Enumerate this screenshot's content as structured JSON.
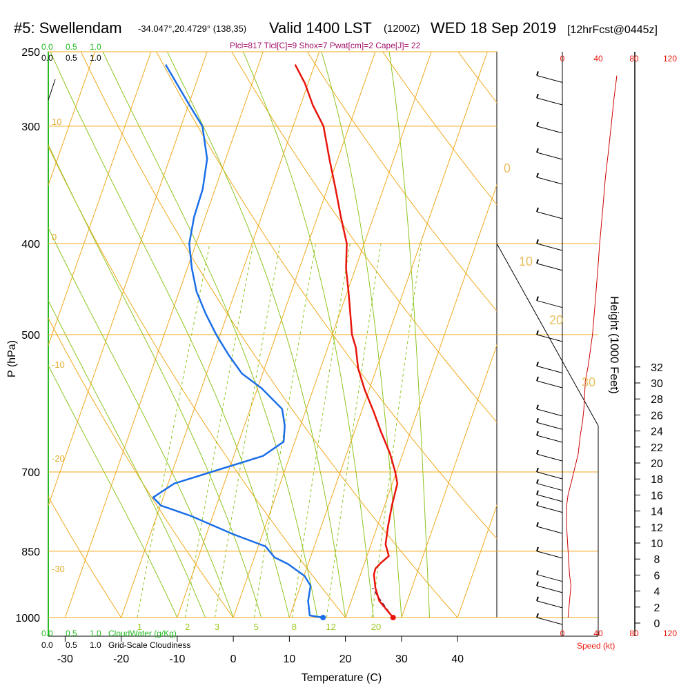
{
  "header": {
    "station": "#5: Swellendam",
    "coords": "-34.047°,20.4729° (138,35)",
    "valid": "Valid 1400 LST",
    "zulu": "(1200Z)",
    "date": "WED 18 Sep 2019",
    "fcst": "[12hrFcst@0445z]",
    "indices": "Plcl=817 Tlcl[C]=9 Shox=7 Pwat[cm]=2 Cape[J]= 22"
  },
  "chart_data": {
    "type": "line",
    "xlabel": "Temperature (C)",
    "ylabel": "P (hPa)",
    "xlim": [
      -33,
      47
    ],
    "ylim_pressure": [
      1000,
      250
    ],
    "x_ticks": [
      "-30",
      "-20",
      "-10",
      "0",
      "10",
      "20",
      "30",
      "40"
    ],
    "x_tick_values": [
      -30,
      -20,
      -10,
      0,
      10,
      20,
      30,
      40
    ],
    "p_ticks": [
      "250",
      "300",
      "400",
      "500",
      "700",
      "850",
      "1000"
    ],
    "p_tick_values": [
      250,
      300,
      400,
      500,
      700,
      850,
      1000
    ],
    "skew": 0.35,
    "temperature": {
      "color": "#e8140a",
      "points": [
        [
          28.5,
          1000
        ],
        [
          25,
          960
        ],
        [
          23.5,
          930
        ],
        [
          22.4,
          900
        ],
        [
          22.3,
          887
        ],
        [
          22.9,
          875
        ],
        [
          23.9,
          860
        ],
        [
          22.6,
          836
        ],
        [
          21.9,
          800
        ],
        [
          21.3,
          760
        ],
        [
          20.9,
          720
        ],
        [
          19.8,
          700
        ],
        [
          17.7,
          669
        ],
        [
          14.8,
          635
        ],
        [
          12.2,
          604
        ],
        [
          9.2,
          572
        ],
        [
          6.7,
          543
        ],
        [
          5.0,
          516
        ],
        [
          3.5,
          500
        ],
        [
          1.9,
          475
        ],
        [
          0.2,
          450
        ],
        [
          -1.7,
          425
        ],
        [
          -3.1,
          400
        ],
        [
          -5.8,
          375
        ],
        [
          -8.5,
          350
        ],
        [
          -11.5,
          325
        ],
        [
          -14.6,
          300
        ],
        [
          -17.8,
          285
        ],
        [
          -20.6,
          270
        ],
        [
          -23.5,
          258
        ]
      ]
    },
    "dewpoint": {
      "color": "#1a6ee8",
      "points": [
        [
          16.0,
          1000
        ],
        [
          13.5,
          995
        ],
        [
          12.3,
          960
        ],
        [
          11.8,
          925
        ],
        [
          10.1,
          903
        ],
        [
          6.4,
          877
        ],
        [
          3.6,
          863
        ],
        [
          1.3,
          840
        ],
        [
          -5.3,
          815
        ],
        [
          -13.8,
          780
        ],
        [
          -19.9,
          760
        ],
        [
          -21.8,
          745
        ],
        [
          -18.9,
          720
        ],
        [
          -13.0,
          700
        ],
        [
          -4.8,
          673
        ],
        [
          -2.0,
          650
        ],
        [
          -2.8,
          625
        ],
        [
          -4.3,
          600
        ],
        [
          -9.3,
          570
        ],
        [
          -13.7,
          550
        ],
        [
          -17.3,
          525
        ],
        [
          -20.7,
          500
        ],
        [
          -23.9,
          475
        ],
        [
          -26.9,
          450
        ],
        [
          -29.2,
          425
        ],
        [
          -31.2,
          400
        ],
        [
          -32.0,
          375
        ],
        [
          -32.2,
          350
        ],
        [
          -33.3,
          325
        ],
        [
          -36.2,
          300
        ],
        [
          -39.8,
          285
        ],
        [
          -43.5,
          270
        ],
        [
          -46.6,
          258
        ]
      ]
    },
    "parcel_path": {
      "color": "#6a0a4a",
      "points": [
        [
          28.5,
          1000
        ],
        [
          26.5,
          975
        ],
        [
          24.5,
          950
        ],
        [
          23.0,
          930
        ]
      ]
    },
    "surface_temp": {
      "value": 28.5,
      "pressure": 1000,
      "color": "#e8140a"
    },
    "surface_dewpoint": {
      "value": 16.0,
      "pressure": 1000,
      "color": "#1a6ee8"
    },
    "dry_adiabat_labels": [
      "-30",
      "-20",
      "-10",
      "0",
      "10",
      "20",
      "30"
    ],
    "mixing_ratio_labels": [
      "1",
      "2",
      "3",
      "5",
      "8",
      "12",
      "20"
    ],
    "mixing_ratio_values": [
      1,
      2,
      3,
      5,
      8,
      12,
      20
    ],
    "moist_adiabat_labels": [
      "0",
      "10",
      "20",
      "30"
    ],
    "legends": {
      "cloud_water_scale": [
        "0.0",
        "0.5",
        "1.0"
      ],
      "cloud_water_label": "CloudWater (g/Kg)",
      "cloudiness_scale": [
        "0.0",
        "0.5",
        "1.0"
      ],
      "cloudiness_label": "Grid-Scale Cloudiness"
    },
    "height_axis": {
      "label": "Height (1000 Feet)",
      "ticks": [
        "0",
        "2",
        "4",
        "6",
        "8",
        "10",
        "12",
        "14",
        "16",
        "18",
        "20",
        "22",
        "24",
        "26",
        "28",
        "30",
        "32"
      ]
    },
    "speed_axis": {
      "label": "Speed (kt)",
      "ticks": [
        "0",
        "40",
        "80",
        "120"
      ]
    },
    "wind_profile": [
      [
        1000,
        8
      ],
      [
        960,
        10
      ],
      [
        925,
        12
      ],
      [
        900,
        10
      ],
      [
        850,
        8
      ],
      [
        800,
        6
      ],
      [
        760,
        6
      ],
      [
        740,
        8
      ],
      [
        720,
        12
      ],
      [
        700,
        16
      ],
      [
        670,
        22
      ],
      [
        640,
        25
      ],
      [
        620,
        28
      ],
      [
        600,
        30
      ],
      [
        560,
        32
      ],
      [
        540,
        36
      ],
      [
        500,
        42
      ],
      [
        460,
        46
      ],
      [
        420,
        50
      ],
      [
        400,
        52
      ],
      [
        370,
        56
      ],
      [
        340,
        60
      ],
      [
        320,
        64
      ],
      [
        300,
        68
      ],
      [
        280,
        72
      ],
      [
        265,
        76
      ]
    ]
  }
}
